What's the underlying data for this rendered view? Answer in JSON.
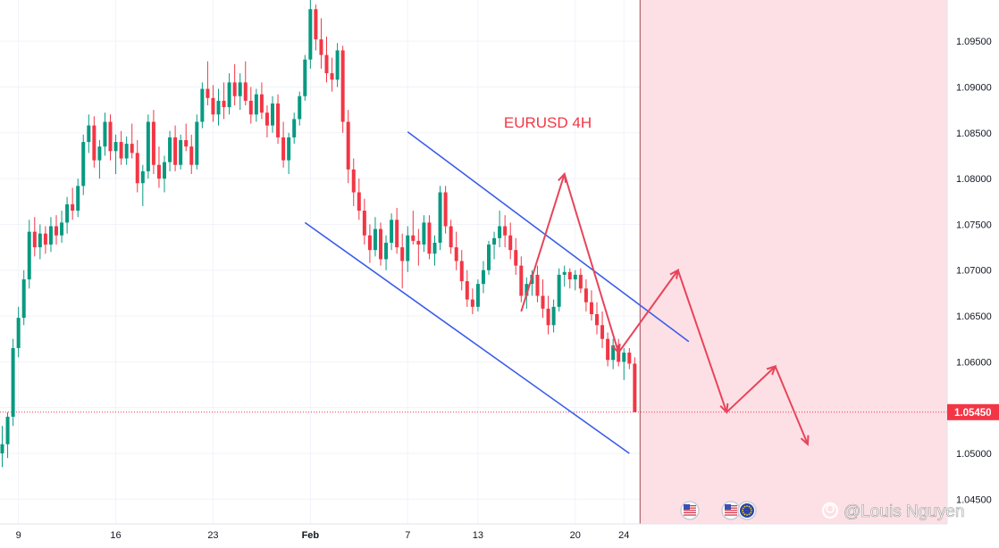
{
  "chart_data": {
    "type": "candlestick",
    "title": "EURUSD 4H",
    "symbol": "EURUSD",
    "timeframe": "4H",
    "ylim": [
      1.0423,
      1.0995
    ],
    "y_ticks": [
      1.095,
      1.09,
      1.085,
      1.08,
      1.075,
      1.07,
      1.065,
      1.06,
      1.055,
      1.05,
      1.045
    ],
    "y_tick_labels": [
      "1.09500",
      "1.09000",
      "1.08500",
      "1.08000",
      "1.07500",
      "1.07000",
      "1.06500",
      "1.06000",
      "1.05500",
      "1.05000",
      "1.04500"
    ],
    "x_tick_labels": [
      "9",
      "16",
      "23",
      "Feb",
      "7",
      "13",
      "20",
      "24"
    ],
    "x_tick_index": [
      3,
      21,
      39,
      57,
      75,
      88,
      106,
      115
    ],
    "x_tick_bold": [
      false,
      false,
      false,
      true,
      false,
      false,
      false,
      false
    ],
    "last_price": 1.0545,
    "last_price_label": "1.05450",
    "watermark": "@Louis Nguyen",
    "colors": {
      "up": "#089981",
      "down": "#f23645",
      "channel": "#3b5ee8",
      "projection": "#e8445a",
      "future_zone": "#fde0e5"
    },
    "channel": {
      "upper": [
        [
          75,
          1.0851
        ],
        [
          127,
          1.0622
        ]
      ],
      "lower": [
        [
          56,
          1.0752
        ],
        [
          116,
          1.05
        ]
      ]
    },
    "projection_path": [
      [
        96,
        1.0655
      ],
      [
        104,
        1.0805
      ],
      [
        114,
        1.061
      ],
      [
        125,
        1.07
      ],
      [
        134,
        1.0545
      ],
      [
        143,
        1.0595
      ],
      [
        149,
        1.051
      ]
    ],
    "candles": [
      [
        1.05,
        1.053,
        1.0485,
        1.051
      ],
      [
        1.051,
        1.0545,
        1.0495,
        1.054
      ],
      [
        1.054,
        1.0625,
        1.053,
        1.0615
      ],
      [
        1.0615,
        1.066,
        1.0605,
        1.0648
      ],
      [
        1.0648,
        1.07,
        1.064,
        1.069
      ],
      [
        1.069,
        1.0755,
        1.068,
        1.0742
      ],
      [
        1.0742,
        1.0758,
        1.0715,
        1.0725
      ],
      [
        1.0725,
        1.075,
        1.0712,
        1.074
      ],
      [
        1.074,
        1.0748,
        1.0718,
        1.0728
      ],
      [
        1.0728,
        1.0758,
        1.072,
        1.0748
      ],
      [
        1.0748,
        1.076,
        1.0728,
        1.0738
      ],
      [
        1.0738,
        1.0765,
        1.073,
        1.0752
      ],
      [
        1.0752,
        1.078,
        1.074,
        1.0772
      ],
      [
        1.0772,
        1.079,
        1.0755,
        1.0765
      ],
      [
        1.0765,
        1.08,
        1.0758,
        1.0792
      ],
      [
        1.0792,
        1.0848,
        1.0782,
        1.084
      ],
      [
        1.084,
        1.087,
        1.0828,
        1.0858
      ],
      [
        1.0858,
        1.0868,
        1.0812,
        1.082
      ],
      [
        1.082,
        1.0842,
        1.08,
        1.0835
      ],
      [
        1.0835,
        1.0872,
        1.0825,
        1.0862
      ],
      [
        1.0862,
        1.087,
        1.082,
        1.083
      ],
      [
        1.083,
        1.0848,
        1.0805,
        1.084
      ],
      [
        1.084,
        1.0852,
        1.0815,
        1.0822
      ],
      [
        1.0822,
        1.0846,
        1.0815,
        1.0838
      ],
      [
        1.0838,
        1.086,
        1.0822,
        1.0828
      ],
      [
        1.0828,
        1.0842,
        1.0785,
        1.0795
      ],
      [
        1.0795,
        1.0815,
        1.077,
        1.0808
      ],
      [
        1.0808,
        1.087,
        1.08,
        1.0862
      ],
      [
        1.0862,
        1.0875,
        1.0805,
        1.0815
      ],
      [
        1.0815,
        1.0835,
        1.079,
        1.08
      ],
      [
        1.08,
        1.0825,
        1.0785,
        1.0818
      ],
      [
        1.0818,
        1.0852,
        1.0808,
        1.0845
      ],
      [
        1.0845,
        1.0858,
        1.0808,
        1.0815
      ],
      [
        1.0815,
        1.0848,
        1.081,
        1.0842
      ],
      [
        1.0842,
        1.086,
        1.083,
        1.0835
      ],
      [
        1.0835,
        1.0848,
        1.0805,
        1.0815
      ],
      [
        1.0815,
        1.087,
        1.081,
        1.0862
      ],
      [
        1.0862,
        1.0905,
        1.0855,
        1.0898
      ],
      [
        1.0898,
        1.0928,
        1.088,
        1.0888
      ],
      [
        1.0888,
        1.0902,
        1.0862,
        1.087
      ],
      [
        1.087,
        1.0898,
        1.0858,
        1.0885
      ],
      [
        1.0885,
        1.0905,
        1.0865,
        1.0878
      ],
      [
        1.0878,
        1.0915,
        1.087,
        1.0905
      ],
      [
        1.0905,
        1.0925,
        1.088,
        1.089
      ],
      [
        1.089,
        1.0915,
        1.0875,
        1.0905
      ],
      [
        1.0905,
        1.0928,
        1.088,
        1.0885
      ],
      [
        1.0885,
        1.09,
        1.086,
        1.087
      ],
      [
        1.087,
        1.0898,
        1.0862,
        1.0892
      ],
      [
        1.0892,
        1.0905,
        1.0865,
        1.0872
      ],
      [
        1.0872,
        1.088,
        1.0845,
        1.0858
      ],
      [
        1.0858,
        1.089,
        1.085,
        1.0882
      ],
      [
        1.0882,
        1.0892,
        1.0838,
        1.0845
      ],
      [
        1.0845,
        1.0862,
        1.0812,
        1.082
      ],
      [
        1.082,
        1.085,
        1.0805,
        1.0845
      ],
      [
        1.0845,
        1.0872,
        1.0838,
        1.0865
      ],
      [
        1.0865,
        1.0895,
        1.0858,
        1.089
      ],
      [
        1.089,
        1.0935,
        1.0885,
        1.093
      ],
      [
        1.093,
        1.0995,
        1.092,
        1.0985
      ],
      [
        1.0985,
        1.099,
        1.094,
        1.0952
      ],
      [
        1.0952,
        1.0975,
        1.092,
        1.0935
      ],
      [
        1.0935,
        1.0955,
        1.0905,
        1.0915
      ],
      [
        1.0915,
        1.0932,
        1.0895,
        1.0908
      ],
      [
        1.0908,
        1.0948,
        1.09,
        1.094
      ],
      [
        1.094,
        1.0945,
        1.085,
        1.0862
      ],
      [
        1.0862,
        1.0875,
        1.0795,
        1.081
      ],
      [
        1.081,
        1.0822,
        1.077,
        1.0785
      ],
      [
        1.0785,
        1.08,
        1.0755,
        1.0765
      ],
      [
        1.0765,
        1.0778,
        1.0728,
        1.0738
      ],
      [
        1.0738,
        1.075,
        1.0708,
        1.0722
      ],
      [
        1.0722,
        1.0758,
        1.0715,
        1.0745
      ],
      [
        1.0745,
        1.0752,
        1.0705,
        1.0712
      ],
      [
        1.0712,
        1.0738,
        1.07,
        1.073
      ],
      [
        1.073,
        1.0762,
        1.0722,
        1.0755
      ],
      [
        1.0755,
        1.0768,
        1.0718,
        1.0725
      ],
      [
        1.0725,
        1.074,
        1.068,
        1.071
      ],
      [
        1.071,
        1.0748,
        1.0698,
        1.0738
      ],
      [
        1.0738,
        1.0765,
        1.0728,
        1.0732
      ],
      [
        1.0732,
        1.0745,
        1.0705,
        1.0728
      ],
      [
        1.0728,
        1.076,
        1.072,
        1.0752
      ],
      [
        1.0752,
        1.076,
        1.0712,
        1.0718
      ],
      [
        1.0718,
        1.0738,
        1.0705,
        1.073
      ],
      [
        1.073,
        1.0792,
        1.0722,
        1.0785
      ],
      [
        1.0785,
        1.0792,
        1.074,
        1.0748
      ],
      [
        1.0748,
        1.0755,
        1.0718,
        1.0725
      ],
      [
        1.0725,
        1.0742,
        1.07,
        1.071
      ],
      [
        1.071,
        1.0722,
        1.0678,
        1.0688
      ],
      [
        1.0688,
        1.07,
        1.066,
        1.0668
      ],
      [
        1.0668,
        1.068,
        1.0652,
        1.066
      ],
      [
        1.066,
        1.069,
        1.0655,
        1.0685
      ],
      [
        1.0685,
        1.071,
        1.0675,
        1.07
      ],
      [
        1.07,
        1.0732,
        1.0695,
        1.0728
      ],
      [
        1.0728,
        1.0742,
        1.0712,
        1.0735
      ],
      [
        1.0735,
        1.0765,
        1.0725,
        1.0748
      ],
      [
        1.0748,
        1.076,
        1.0725,
        1.0738
      ],
      [
        1.0738,
        1.0752,
        1.0712,
        1.0722
      ],
      [
        1.0722,
        1.0735,
        1.0695,
        1.0705
      ],
      [
        1.0705,
        1.0715,
        1.0665,
        1.0672
      ],
      [
        1.0672,
        1.0692,
        1.0658,
        1.0685
      ],
      [
        1.0685,
        1.07,
        1.0672,
        1.0695
      ],
      [
        1.0695,
        1.0705,
        1.0665,
        1.0672
      ],
      [
        1.0672,
        1.069,
        1.0648,
        1.0658
      ],
      [
        1.0658,
        1.0672,
        1.063,
        1.064
      ],
      [
        1.064,
        1.0668,
        1.0632,
        1.066
      ],
      [
        1.066,
        1.0702,
        1.0655,
        1.0695
      ],
      [
        1.0695,
        1.0705,
        1.0682,
        1.0698
      ],
      [
        1.0698,
        1.0702,
        1.068,
        1.069
      ],
      [
        1.069,
        1.07,
        1.0678,
        1.0695
      ],
      [
        1.0695,
        1.0702,
        1.0675,
        1.068
      ],
      [
        1.068,
        1.069,
        1.0655,
        1.0665
      ],
      [
        1.0665,
        1.0678,
        1.0645,
        1.0652
      ],
      [
        1.0652,
        1.0665,
        1.063,
        1.064
      ],
      [
        1.064,
        1.0655,
        1.0615,
        1.0625
      ],
      [
        1.0625,
        1.0632,
        1.0595,
        1.0602
      ],
      [
        1.0602,
        1.0625,
        1.0592,
        1.0618
      ],
      [
        1.0618,
        1.0625,
        1.0595,
        1.06
      ],
      [
        1.06,
        1.0615,
        1.058,
        1.061
      ],
      [
        1.061,
        1.0615,
        1.0592,
        1.0598
      ],
      [
        1.0598,
        1.0605,
        1.0545,
        1.0545
      ]
    ]
  },
  "watermark_text": "@Louis Nguyen",
  "events": [
    "us-flag-icon",
    "us-flag-icon",
    "eu-flag-icon"
  ]
}
